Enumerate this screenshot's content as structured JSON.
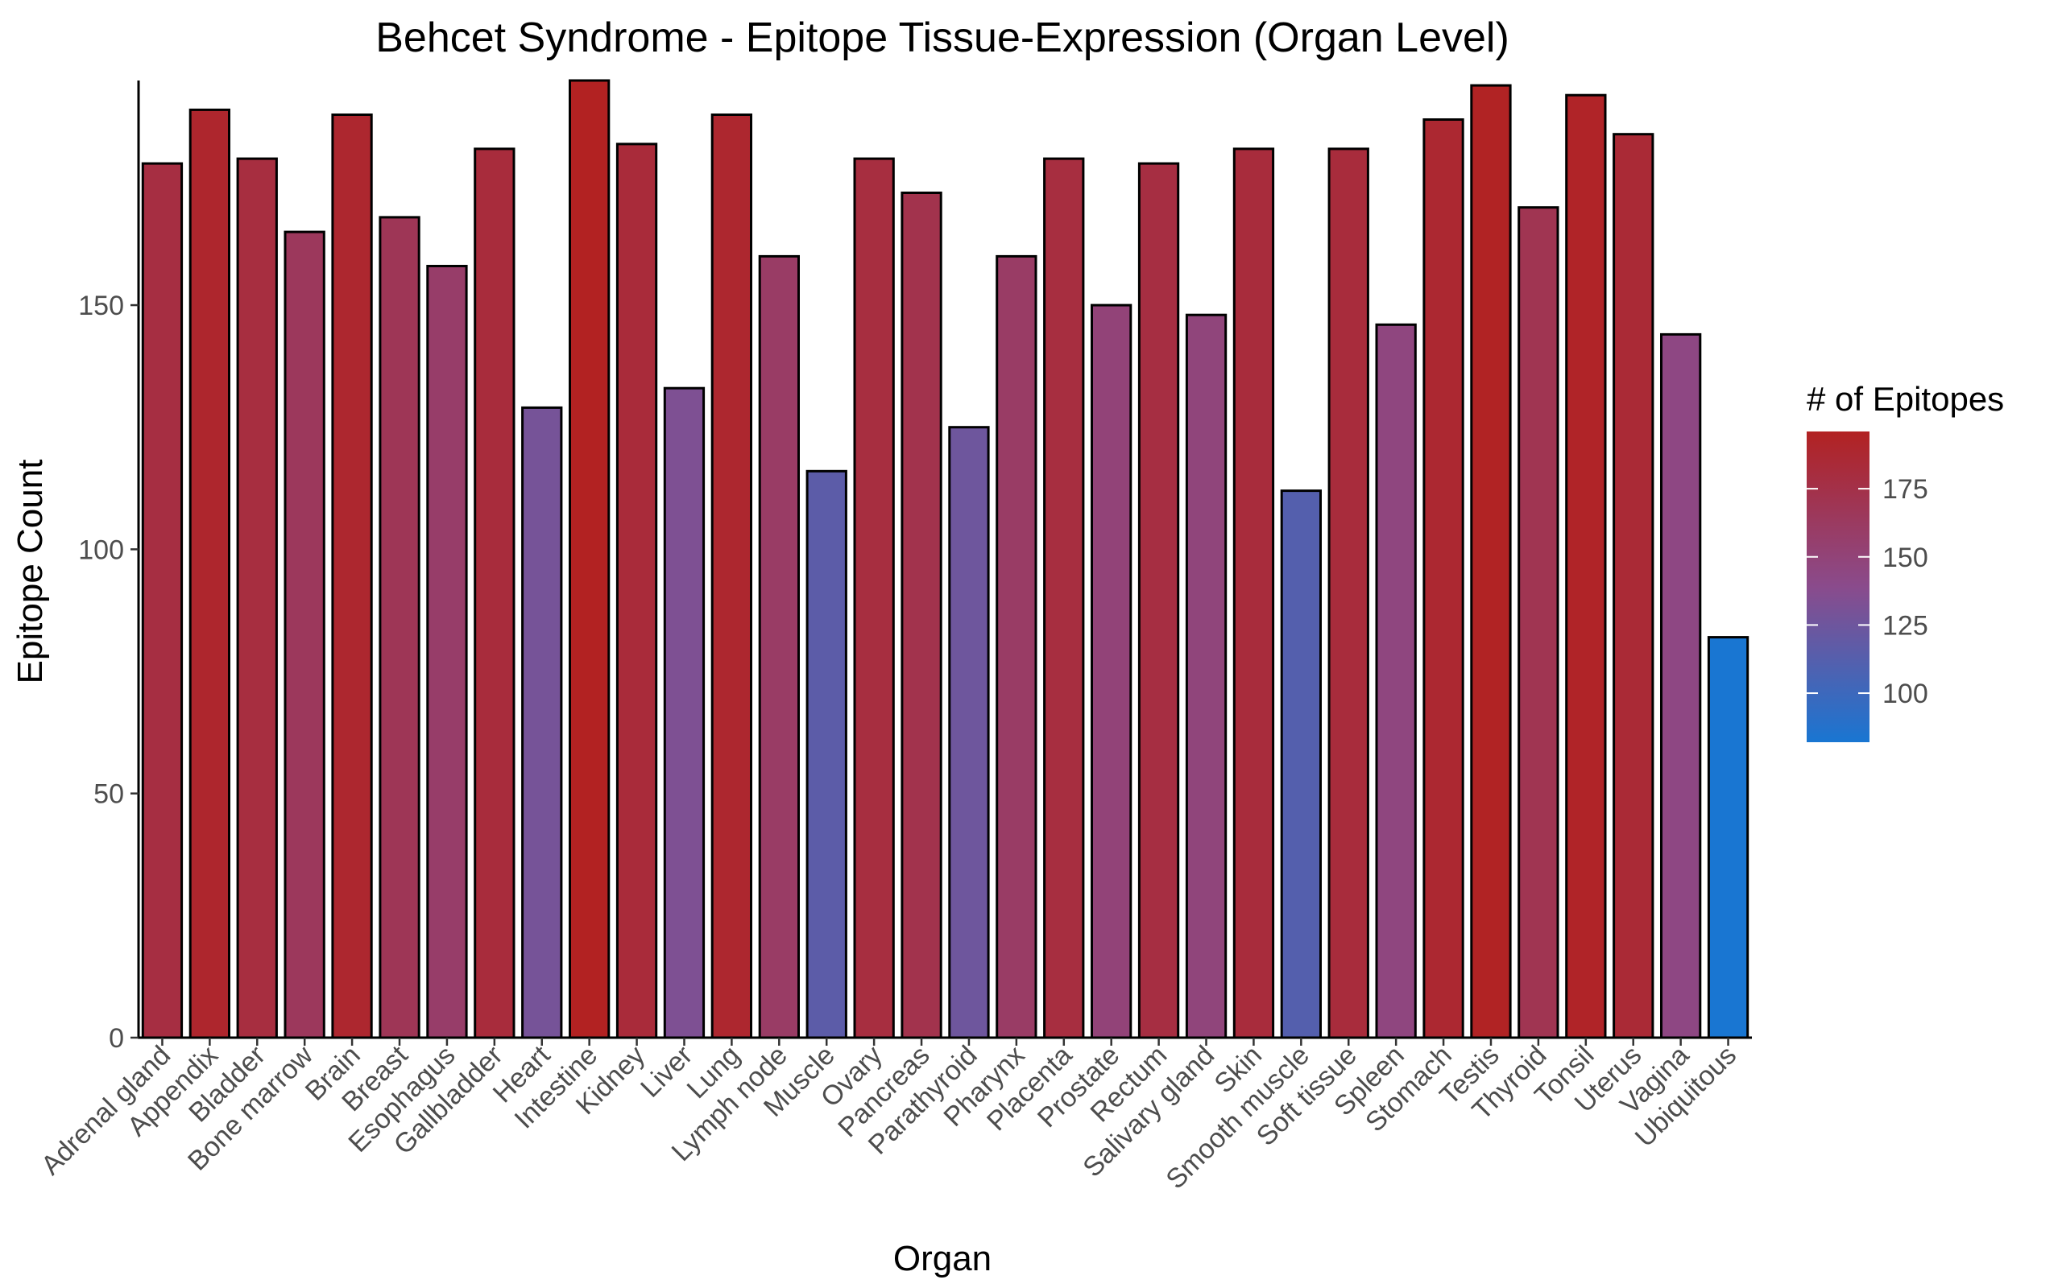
{
  "chart_data": {
    "type": "bar",
    "title": "Behcet Syndrome - Epitope Tissue-Expression (Organ Level)",
    "xlabel": "Organ",
    "ylabel": "Epitope Count",
    "categories": [
      "Adrenal gland",
      "Appendix",
      "Bladder",
      "Bone marrow",
      "Brain",
      "Breast",
      "Esophagus",
      "Gallbladder",
      "Heart",
      "Intestine",
      "Kidney",
      "Liver",
      "Lung",
      "Lymph node",
      "Muscle",
      "Ovary",
      "Pancreas",
      "Parathyroid",
      "Pharynx",
      "Placenta",
      "Prostate",
      "Rectum",
      "Salivary gland",
      "Skin",
      "Smooth muscle",
      "Soft tissue",
      "Spleen",
      "Stomach",
      "Testis",
      "Thyroid",
      "Tonsil",
      "Uterus",
      "Vagina",
      "Ubiquitous"
    ],
    "values": [
      179,
      190,
      180,
      165,
      189,
      168,
      158,
      182,
      129,
      196,
      183,
      133,
      189,
      160,
      116,
      180,
      173,
      125,
      160,
      180,
      150,
      179,
      148,
      182,
      112,
      182,
      146,
      188,
      195,
      170,
      193,
      185,
      144,
      82
    ],
    "yticks": [
      0,
      50,
      100,
      150
    ],
    "ylim": [
      0,
      196
    ],
    "grid": false,
    "legend": {
      "title": "# of Epitopes",
      "position": "right",
      "ticks": [
        100,
        125,
        150,
        175
      ],
      "range": [
        82,
        196
      ],
      "color_low": "#1976D2",
      "color_high": "#B22222"
    },
    "bar_outline_color": "#000000"
  }
}
